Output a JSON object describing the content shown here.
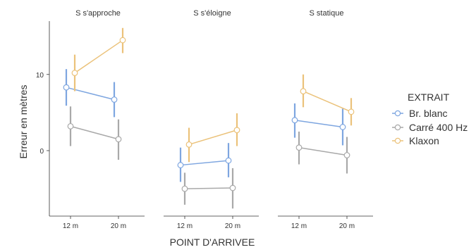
{
  "chart_data": {
    "type": "scatter",
    "xlabel": "POINT D'ARRIVEE",
    "ylabel": "Erreur en mètres",
    "ylim": [
      -8.5,
      17
    ],
    "yticks": [
      0,
      10
    ],
    "categories": [
      "12 m",
      "20 m"
    ],
    "legend": {
      "title": "EXTRAIT",
      "position": "right"
    },
    "grid": false,
    "series": [
      {
        "name": "Br. blanc",
        "color": "#7ea6e0"
      },
      {
        "name": "Carré 400 Hz",
        "color": "#a9a9a9"
      },
      {
        "name": "Klaxon",
        "color": "#ebc27a"
      }
    ],
    "panels": [
      {
        "title": "S s'approche",
        "data": {
          "Br. blanc": [
            {
              "x": "12 m",
              "y": 8.3,
              "lo": 5.9,
              "hi": 10.7
            },
            {
              "x": "20 m",
              "y": 6.7,
              "lo": 4.4,
              "hi": 9.0
            }
          ],
          "Carré 400 Hz": [
            {
              "x": "12 m",
              "y": 3.2,
              "lo": 0.6,
              "hi": 5.8
            },
            {
              "x": "20 m",
              "y": 1.5,
              "lo": -1.2,
              "hi": 4.1
            }
          ],
          "Klaxon": [
            {
              "x": "12 m",
              "y": 10.2,
              "lo": 7.8,
              "hi": 12.6
            },
            {
              "x": "20 m",
              "y": 14.5,
              "lo": 12.8,
              "hi": 16.1
            }
          ]
        }
      },
      {
        "title": "S s'éloigne",
        "data": {
          "Br. blanc": [
            {
              "x": "12 m",
              "y": -1.9,
              "lo": -4.1,
              "hi": 0.4
            },
            {
              "x": "20 m",
              "y": -1.3,
              "lo": -3.5,
              "hi": 1.0
            }
          ],
          "Carré 400 Hz": [
            {
              "x": "12 m",
              "y": -5.0,
              "lo": -7.1,
              "hi": -2.9
            },
            {
              "x": "20 m",
              "y": -4.9,
              "lo": -7.6,
              "hi": -2.3
            }
          ],
          "Klaxon": [
            {
              "x": "12 m",
              "y": 0.8,
              "lo": -1.5,
              "hi": 3.0
            },
            {
              "x": "20 m",
              "y": 2.7,
              "lo": 0.6,
              "hi": 4.9
            }
          ]
        }
      },
      {
        "title": "S statique",
        "data": {
          "Br. blanc": [
            {
              "x": "12 m",
              "y": 4.0,
              "lo": 1.7,
              "hi": 6.2
            },
            {
              "x": "20 m",
              "y": 3.1,
              "lo": 0.7,
              "hi": 5.5
            }
          ],
          "Carré 400 Hz": [
            {
              "x": "12 m",
              "y": 0.4,
              "lo": -1.8,
              "hi": 2.5
            },
            {
              "x": "20 m",
              "y": -0.6,
              "lo": -3.0,
              "hi": 1.8
            }
          ],
          "Klaxon": [
            {
              "x": "12 m",
              "y": 7.8,
              "lo": 5.7,
              "hi": 10.0
            },
            {
              "x": "20 m",
              "y": 5.1,
              "lo": 3.3,
              "hi": 6.9
            }
          ]
        }
      }
    ]
  }
}
